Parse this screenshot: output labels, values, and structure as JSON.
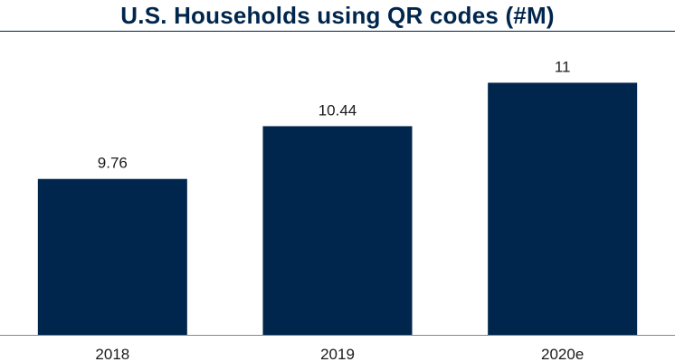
{
  "colors": {
    "bar": "#00264D",
    "title": "#00264D",
    "rule": "#00264D",
    "axis": "#888888",
    "text": "#1a1a1a"
  },
  "chart_data": {
    "type": "bar",
    "title": "U.S. Households using QR codes (#M)",
    "categories": [
      "2018",
      "2019",
      "2020e"
    ],
    "values": [
      9.76,
      10.44,
      11
    ],
    "value_labels": [
      "9.76",
      "10.44",
      "11"
    ],
    "xlabel": "",
    "ylabel": "",
    "ylim": [
      7.75,
      11.6
    ],
    "grid": false,
    "legend": "none"
  }
}
